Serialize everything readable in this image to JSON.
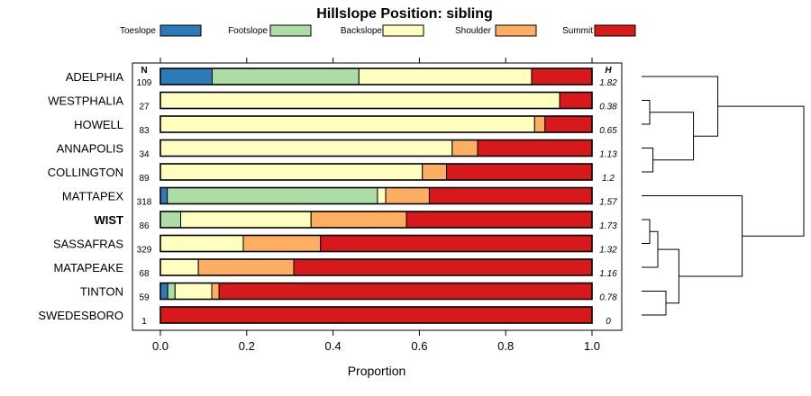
{
  "chart_data": {
    "type": "stacked-bar-horizontal",
    "title": "Hillslope Position: sibling",
    "xlabel": "Proportion",
    "xlim": [
      0,
      1
    ],
    "x_ticks": [
      "0.0",
      "0.2",
      "0.4",
      "0.6",
      "0.8",
      "1.0"
    ],
    "n_header": "N",
    "h_header": "H",
    "legend": [
      {
        "name": "Toeslope",
        "color": "#2b7bba"
      },
      {
        "name": "Footslope",
        "color": "#abdda4"
      },
      {
        "name": "Backslope",
        "color": "#ffffbf"
      },
      {
        "name": "Shoulder",
        "color": "#fdae61"
      },
      {
        "name": "Summit",
        "color": "#d7191c"
      }
    ],
    "rows": [
      {
        "name": "ADELPHIA",
        "n": "109",
        "h": "1.82",
        "bold": false,
        "values": [
          0.12,
          0.34,
          0.4,
          0.0,
          0.14
        ]
      },
      {
        "name": "WESTPHALIA",
        "n": "27",
        "h": "0.38",
        "bold": false,
        "values": [
          0.0,
          0.0,
          0.925,
          0.0,
          0.075
        ]
      },
      {
        "name": "HOWELL",
        "n": "83",
        "h": "0.65",
        "bold": false,
        "values": [
          0.0,
          0.0,
          0.867,
          0.024,
          0.109
        ]
      },
      {
        "name": "ANNAPOLIS",
        "n": "34",
        "h": "1.13",
        "bold": false,
        "values": [
          0.0,
          0.0,
          0.676,
          0.059,
          0.265
        ]
      },
      {
        "name": "COLLINGTON",
        "n": "89",
        "h": "1.2",
        "bold": false,
        "values": [
          0.0,
          0.0,
          0.607,
          0.056,
          0.337
        ]
      },
      {
        "name": "MATTAPEX",
        "n": "318",
        "h": "1.57",
        "bold": false,
        "values": [
          0.016,
          0.487,
          0.019,
          0.101,
          0.377
        ]
      },
      {
        "name": "WIST",
        "n": "86",
        "h": "1.73",
        "bold": true,
        "values": [
          0.0,
          0.047,
          0.302,
          0.221,
          0.43
        ]
      },
      {
        "name": "SASSAFRAS",
        "n": "329",
        "h": "1.32",
        "bold": false,
        "values": [
          0.0,
          0.0,
          0.192,
          0.179,
          0.629
        ]
      },
      {
        "name": "MATAPEAKE",
        "n": "68",
        "h": "1.16",
        "bold": false,
        "values": [
          0.0,
          0.0,
          0.088,
          0.221,
          0.691
        ]
      },
      {
        "name": "TINTON",
        "n": "59",
        "h": "0.78",
        "bold": false,
        "values": [
          0.017,
          0.017,
          0.085,
          0.017,
          0.864
        ]
      },
      {
        "name": "SWEDESBORO",
        "n": "1",
        "h": "0",
        "bold": false,
        "values": [
          0.0,
          0.0,
          0.0,
          0.0,
          1.0
        ]
      }
    ],
    "dendrogram": {
      "leaf_order": [
        "ADELPHIA",
        "WESTPHALIA",
        "HOWELL",
        "ANNAPOLIS",
        "COLLINGTON",
        "MATTAPEX",
        "WIST",
        "SASSAFRAS",
        "MATAPEAKE",
        "TINTON",
        "SWEDESBORO"
      ],
      "root_height": 1.0,
      "merges": [
        {
          "left": "leaf:1",
          "right": "leaf:2",
          "height": 0.05
        },
        {
          "left": "leaf:3",
          "right": "leaf:4",
          "height": 0.07
        },
        {
          "left": "node:0",
          "right": "node:1",
          "height": 0.32
        },
        {
          "left": "leaf:0",
          "right": "node:2",
          "height": 0.47
        },
        {
          "left": "leaf:6",
          "right": "leaf:7",
          "height": 0.05
        },
        {
          "left": "node:4",
          "right": "leaf:8",
          "height": 0.1
        },
        {
          "left": "leaf:9",
          "right": "leaf:10",
          "height": 0.15
        },
        {
          "left": "node:5",
          "right": "node:6",
          "height": 0.23
        },
        {
          "left": "leaf:5",
          "right": "node:7",
          "height": 0.62
        },
        {
          "left": "node:3",
          "right": "node:8",
          "height": 1.0
        }
      ]
    }
  }
}
